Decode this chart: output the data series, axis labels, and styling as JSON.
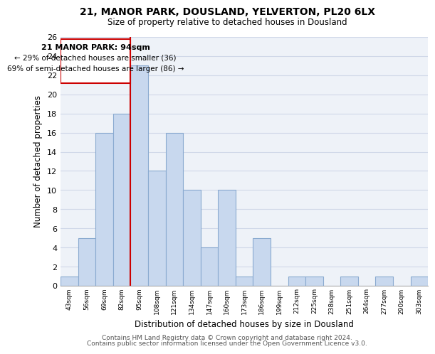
{
  "title1": "21, MANOR PARK, DOUSLAND, YELVERTON, PL20 6LX",
  "title2": "Size of property relative to detached houses in Dousland",
  "xlabel": "Distribution of detached houses by size in Dousland",
  "ylabel": "Number of detached properties",
  "bin_labels": [
    "43sqm",
    "56sqm",
    "69sqm",
    "82sqm",
    "95sqm",
    "108sqm",
    "121sqm",
    "134sqm",
    "147sqm",
    "160sqm",
    "173sqm",
    "186sqm",
    "199sqm",
    "212sqm",
    "225sqm",
    "238sqm",
    "251sqm",
    "264sqm",
    "277sqm",
    "290sqm",
    "303sqm"
  ],
  "bar_heights": [
    1,
    5,
    16,
    18,
    23,
    12,
    16,
    10,
    4,
    10,
    1,
    5,
    0,
    1,
    1,
    0,
    1,
    0,
    1,
    0,
    1
  ],
  "bar_color": "#c8d8ee",
  "bar_edge_color": "#8aaad0",
  "red_line_index": 4,
  "annotation_title": "21 MANOR PARK: 94sqm",
  "annotation_line1": "← 29% of detached houses are smaller (36)",
  "annotation_line2": "69% of semi-detached houses are larger (86) →",
  "footer1": "Contains HM Land Registry data © Crown copyright and database right 2024.",
  "footer2": "Contains public sector information licensed under the Open Government Licence v3.0.",
  "ylim": [
    0,
    26
  ],
  "yticks": [
    0,
    2,
    4,
    6,
    8,
    10,
    12,
    14,
    16,
    18,
    20,
    22,
    24,
    26
  ],
  "background_color": "#ffffff",
  "grid_color": "#d0d8e8",
  "plot_bg_color": "#eef2f8"
}
